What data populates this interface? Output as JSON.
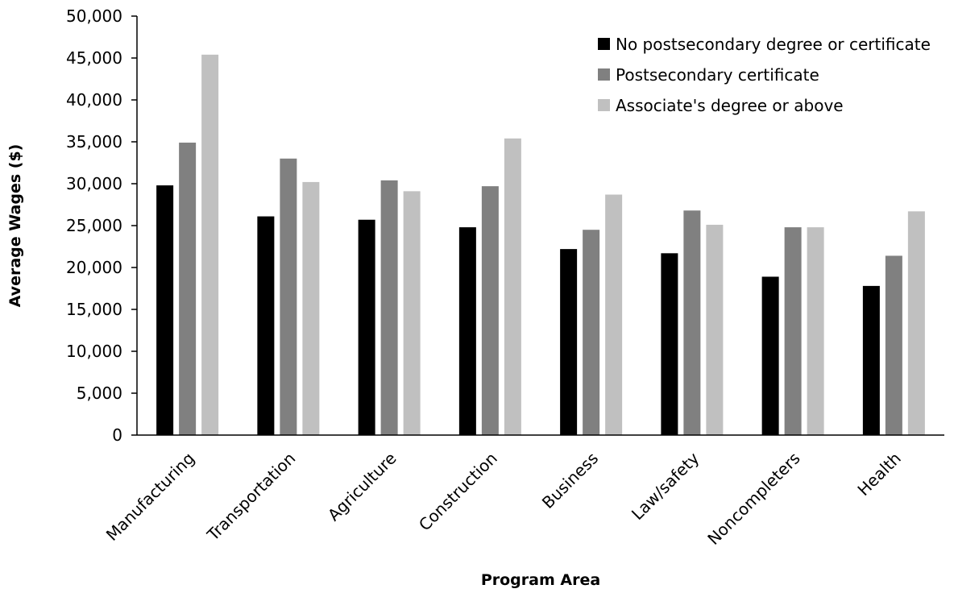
{
  "chart_data": {
    "type": "bar",
    "title": "",
    "xlabel": "Program Area",
    "ylabel": "Average Wages ($)",
    "ylim": [
      0,
      50000
    ],
    "yticks": [
      0,
      5000,
      10000,
      15000,
      20000,
      25000,
      30000,
      35000,
      40000,
      45000,
      50000
    ],
    "ytick_labels": [
      "0",
      "5,000",
      "10,000",
      "15,000",
      "20,000",
      "25,000",
      "30,000",
      "35,000",
      "40,000",
      "45,000",
      "50,000"
    ],
    "grid": false,
    "legend_position": "top-right",
    "categories": [
      "Manufacturing",
      "Transportation",
      "Agriculture",
      "Construction",
      "Business",
      "Law/safety",
      "Noncompleters",
      "Health"
    ],
    "series": [
      {
        "name": "No postsecondary degree or certificate",
        "color": "#000000",
        "values": [
          29800,
          26100,
          25700,
          24800,
          22200,
          21700,
          18900,
          17800
        ]
      },
      {
        "name": "Postsecondary certificate",
        "color": "#808080",
        "values": [
          34900,
          33000,
          30400,
          29700,
          24500,
          26800,
          24800,
          21400
        ]
      },
      {
        "name": "Associate's degree or above",
        "color": "#c0c0c0",
        "values": [
          45400,
          30200,
          29100,
          35400,
          28700,
          25100,
          24800,
          26700
        ]
      }
    ]
  }
}
